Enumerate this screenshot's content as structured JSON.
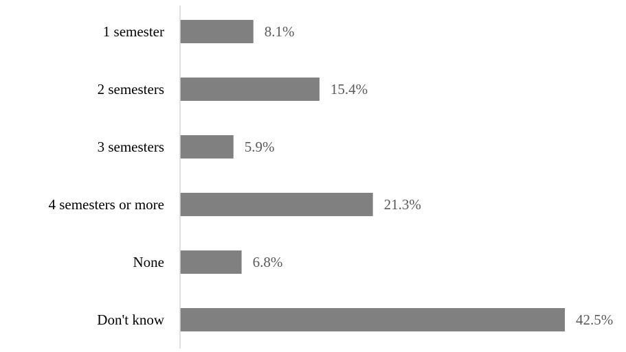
{
  "chart_data": {
    "type": "bar",
    "orientation": "horizontal",
    "categories": [
      "1 semester",
      "2 semesters",
      "3 semesters",
      "4 semesters or more",
      "None",
      "Don't know"
    ],
    "values": [
      8.1,
      15.4,
      5.9,
      21.3,
      6.8,
      42.5
    ],
    "data_labels": [
      "8.1%",
      "15.4%",
      "5.9%",
      "21.3%",
      "6.8%",
      "42.5%"
    ],
    "value_unit": "%",
    "title": "",
    "xlabel": "",
    "ylabel": "",
    "xlim": [
      0,
      42.5
    ],
    "grid": false,
    "legend": "none",
    "colors": {
      "bar": "#808080",
      "axis": "#d9d9d9",
      "text": "#595959",
      "category_text": "#000000"
    }
  }
}
